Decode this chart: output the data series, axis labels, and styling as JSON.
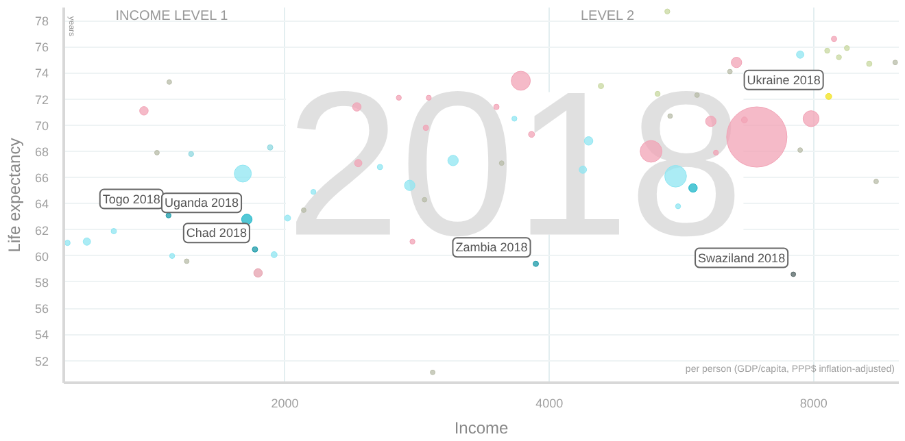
{
  "chart_data": {
    "type": "bubble",
    "xlabel": "Income",
    "ylabel": "Life expectancy",
    "log": "x",
    "grid": true,
    "xlim": [
      1120,
      10000
    ],
    "xticks": [
      2000,
      4000,
      8000
    ],
    "ylim": [
      50.3,
      79
    ],
    "yticks": [
      52,
      54,
      56,
      58,
      60,
      62,
      64,
      66,
      68,
      70,
      72,
      74,
      76,
      78
    ],
    "x": [
      1382,
      1477,
      1430,
      1564,
      1924,
      1791,
      2415,
      2696,
      2916,
      2894,
      2424,
      2566,
      2774,
      2155,
      3108,
      2884,
      1474,
      1810,
      1849,
      1864,
      2014,
      1944,
      1190,
      1131,
      1277,
      1488,
      1546,
      2794,
      2946,
      2101,
      3861,
      7584,
      5606,
      5450,
      8438,
      8288,
      8727,
      8547,
      9254,
      9906,
      7721,
      6534,
      6422,
      8320,
      7945,
      6891,
      6671,
      6109,
      5223,
      5570,
      5830,
      6191,
      7721,
      3712,
      4580,
      5313,
      5892,
      3482,
      3650,
      3818,
      4434,
      4368,
      3530,
      5490,
      9423
    ],
    "values": [
      71.1,
      73.3,
      67.9,
      67.8,
      68.3,
      66.3,
      71.4,
      72.1,
      72.1,
      69.8,
      67.1,
      66.8,
      65.4,
      64.9,
      67.3,
      64.3,
      63.1,
      62.8,
      60.5,
      58.7,
      62.9,
      60.1,
      61.1,
      61.0,
      61.9,
      60.0,
      59.6,
      61.1,
      51.1,
      63.5,
      59.4,
      58.6,
      63.8,
      78.7,
      76.6,
      75.7,
      75.9,
      75.2,
      74.7,
      74.8,
      75.4,
      74.8,
      74.1,
      72.2,
      70.5,
      69.1,
      70.4,
      70.3,
      68.0,
      66.1,
      65.2,
      67.9,
      68.1,
      73.4,
      73.0,
      72.4,
      72.3,
      71.4,
      70.5,
      69.3,
      68.8,
      66.6,
      67.1,
      70.7,
      65.7
    ],
    "sizes": [
      0.02,
      0.006,
      0.006,
      0.007,
      0.008,
      0.08,
      0.02,
      0.007,
      0.007,
      0.008,
      0.015,
      0.008,
      0.03,
      0.007,
      0.03,
      0.006,
      0.007,
      0.03,
      0.008,
      0.02,
      0.01,
      0.01,
      0.015,
      0.008,
      0.008,
      0.007,
      0.006,
      0.007,
      0.006,
      0.006,
      0.008,
      0.006,
      0.007,
      0.007,
      0.008,
      0.007,
      0.007,
      0.007,
      0.008,
      0.006,
      0.015,
      0.03,
      0.006,
      0.01,
      0.07,
      1,
      0.01,
      0.03,
      0.13,
      0.13,
      0.02,
      0.007,
      0.006,
      0.1,
      0.008,
      0.007,
      0.006,
      0.008,
      0.007,
      0.01,
      0.02,
      0.015,
      0.006,
      0.006,
      0.006
    ],
    "colors": [
      "#f2a3b6",
      "#b8bca8",
      "#b8bca8",
      "#8fd8e0",
      "#8fd8e0",
      "#8fe6f2",
      "#f2a3b6",
      "#f2a3b6",
      "#f2a3b6",
      "#f2a3b6",
      "#f2a3b6",
      "#8fe6f2",
      "#8fe6f2",
      "#8fe6f2",
      "#8fe6f2",
      "#b8bca8",
      "#1a9aa8",
      "#1ab5c8",
      "#1a9aa8",
      "#e6a0ae",
      "#8fe6f2",
      "#8fe6f2",
      "#8fe6f2",
      "#8fe6f2",
      "#8fe6f2",
      "#8fe6f2",
      "#b8bca8",
      "#f2a3b6",
      "#b8bca8",
      "#b8bca8",
      "#1a9aa8",
      "#556666",
      "#8fe6f2",
      "#c8d8a0",
      "#f2a3b6",
      "#c8d8a0",
      "#c8d8a0",
      "#c8d8a0",
      "#c8d8a0",
      "#b8bca8",
      "#8fe6f2",
      "#f2a3b6",
      "#b8bca8",
      "#f2e21a",
      "#f2a3b6",
      "#f2a3b6",
      "#f2a3b6",
      "#f2a3b6",
      "#f2a3b6",
      "#8fe6f2",
      "#1ab5c8",
      "#f2a3b6",
      "#b8bca8",
      "#f2a3b6",
      "#c8d8a0",
      "#c8d8a0",
      "#b8bca8",
      "#f2a3b6",
      "#8fe6f2",
      "#f2a3b6",
      "#8fe6f2",
      "#8fe6f2",
      "#b8bca8",
      "#b8bca8",
      "#b8bca8"
    ],
    "annotations": [
      "2018",
      "INCOME LEVEL 1",
      "LEVEL 2",
      "years",
      "per person (GDP/capita, PPP$ inflation-adjusted)",
      {
        "text": "Togo 2018",
        "x": 1474,
        "y": 63.1
      },
      {
        "text": "Uganda 2018",
        "x": 1810,
        "y": 62.8
      },
      {
        "text": "Chad 2018",
        "x": 1849,
        "y": 60.5
      },
      {
        "text": "Zambia 2018",
        "x": 3861,
        "y": 59.4
      },
      {
        "text": "Swaziland 2018",
        "x": 7584,
        "y": 58.6
      },
      {
        "text": "Ukraine 2018",
        "x": 8320,
        "y": 72.2
      }
    ]
  }
}
